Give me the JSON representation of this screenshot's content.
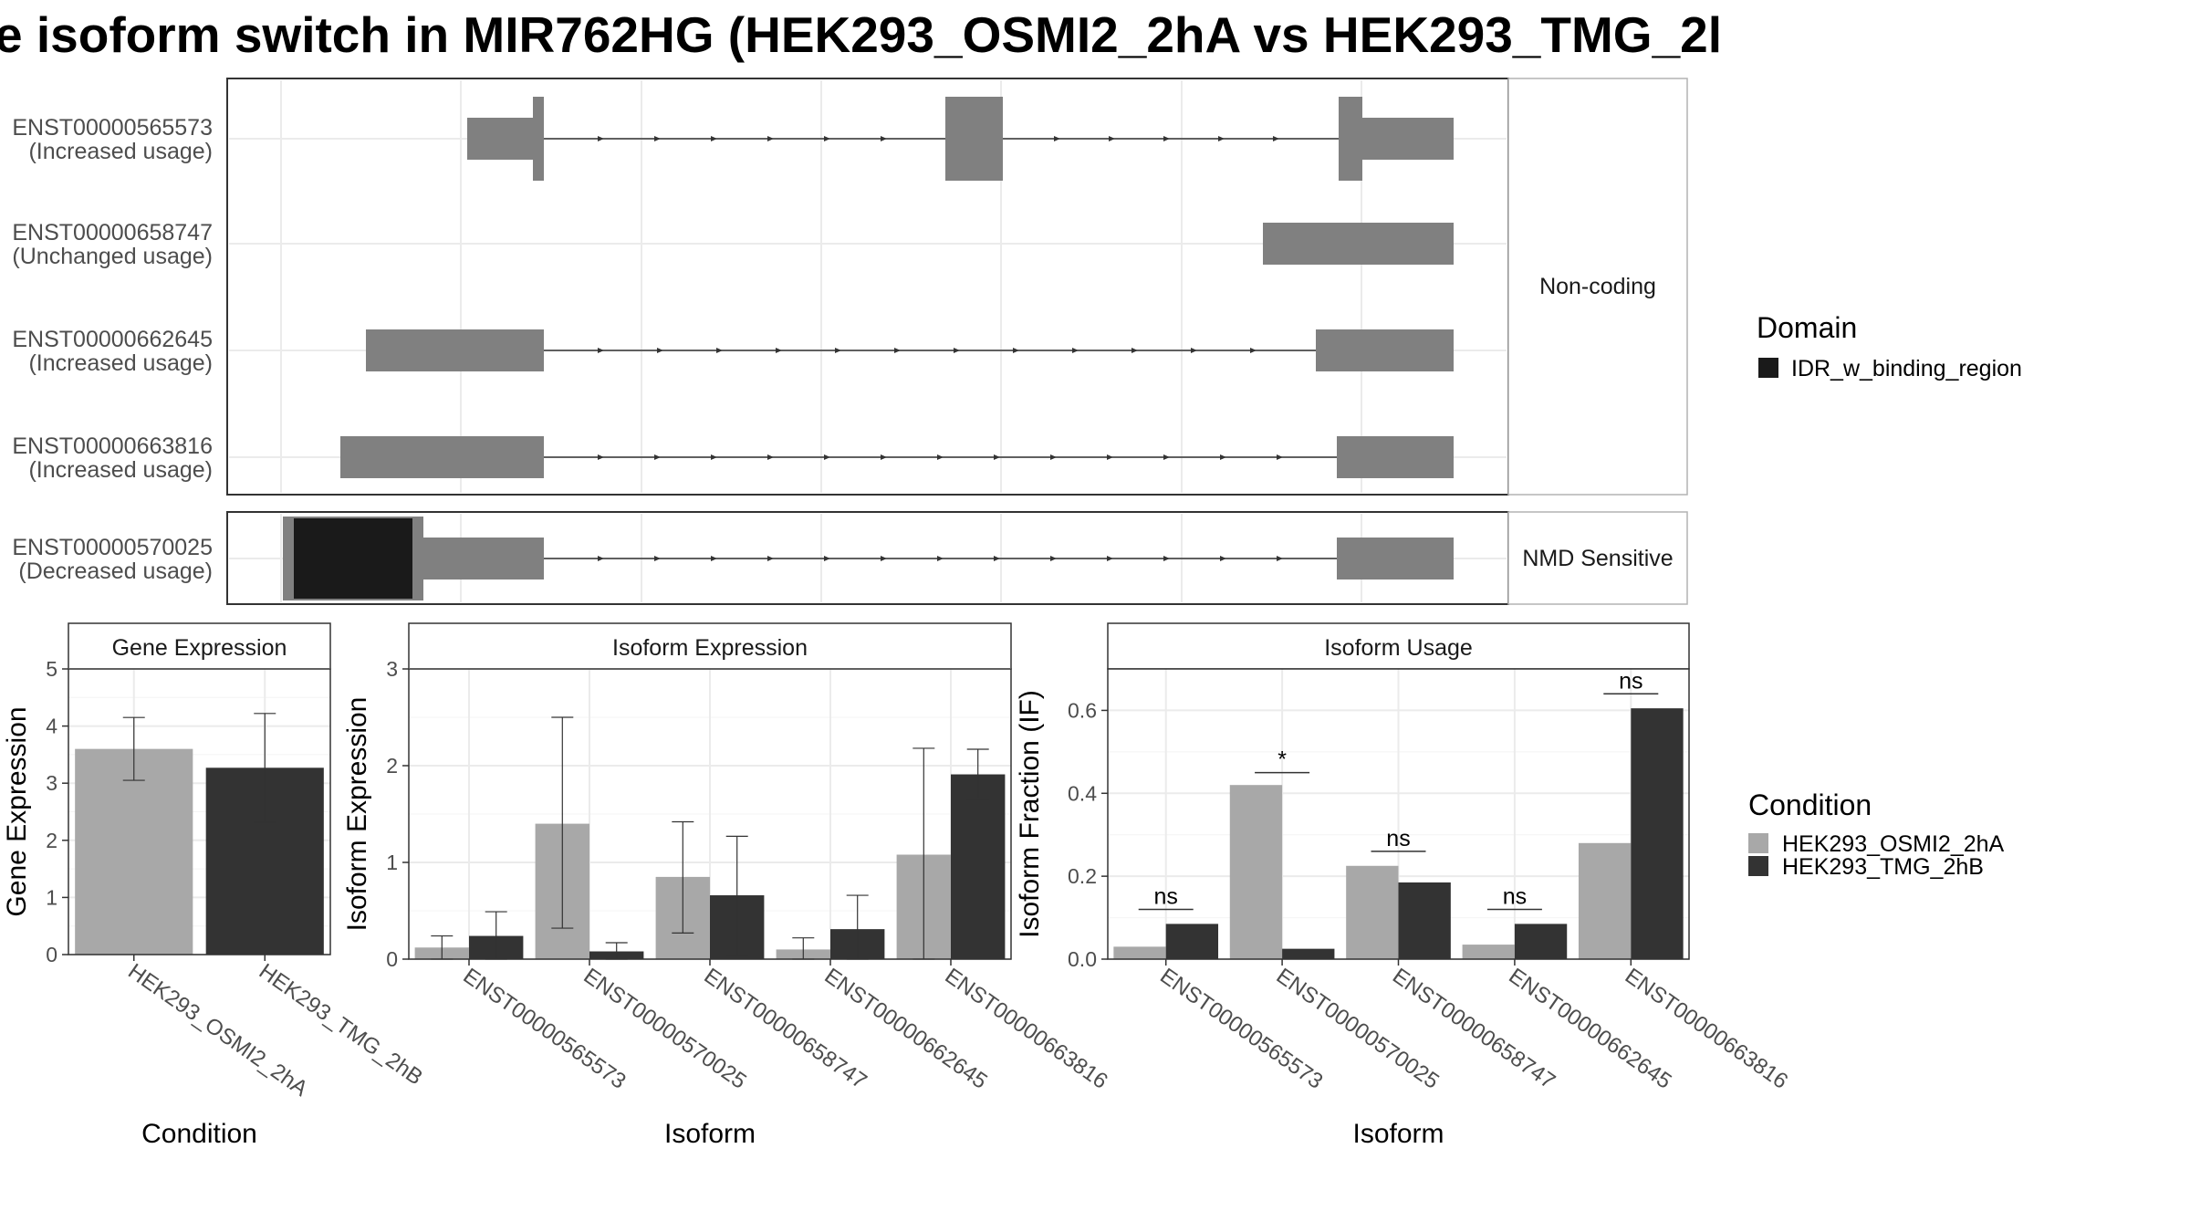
{
  "title": "e isoform switch in MIR762HG (HEK293_OSMI2_2hA vs HEK293_TMG_2l",
  "colors": {
    "cond_a": "#a8a8a8",
    "cond_b": "#333333",
    "exon": "#808080",
    "domain": "#1a1a1a",
    "grid": "#ebebeb",
    "strip_bg": "#ffffff"
  },
  "chart_data": [
    {
      "type": "gene-structure",
      "panels": [
        {
          "label": "Non-coding",
          "transcripts": [
            0,
            1,
            2,
            3
          ]
        },
        {
          "label": "NMD Sensitive",
          "transcripts": [
            4
          ]
        }
      ],
      "transcripts": [
        {
          "id": "ENST00000565573",
          "status": "(Increased usage)"
        },
        {
          "id": "ENST00000658747",
          "status": "(Unchanged usage)"
        },
        {
          "id": "ENST00000662645",
          "status": "(Increased usage)"
        },
        {
          "id": "ENST00000663816",
          "status": "(Increased usage)"
        },
        {
          "id": "ENST00000570025",
          "status": "(Decreased usage)"
        }
      ],
      "legend": {
        "title": "Domain",
        "items": [
          {
            "name": "IDR_w_binding_region",
            "color": "#1a1a1a"
          }
        ]
      }
    },
    {
      "type": "bar",
      "strip": "Gene Expression",
      "xlabel": "Condition",
      "ylabel": "Gene Expression",
      "ylim": [
        0,
        5
      ],
      "yticks": [
        0,
        1,
        2,
        3,
        4,
        5
      ],
      "categories": [
        "HEK293_OSMI2_2hA",
        "HEK293_TMG_2hB"
      ],
      "values": [
        3.6,
        3.27
      ],
      "err_low": [
        3.05,
        2.32
      ],
      "err_high": [
        4.15,
        4.22
      ]
    },
    {
      "type": "bar",
      "strip": "Isoform Expression",
      "xlabel": "Isoform",
      "ylabel": "Isoform Expression",
      "ylim": [
        0,
        3
      ],
      "yticks": [
        0,
        1,
        2,
        3
      ],
      "categories": [
        "ENST00000565573",
        "ENST00000570025",
        "ENST00000658747",
        "ENST00000662645",
        "ENST00000663816"
      ],
      "series": [
        {
          "name": "HEK293_OSMI2_2hA",
          "values": [
            0.12,
            1.4,
            0.85,
            0.1,
            1.08
          ],
          "err_low": [
            0.0,
            0.32,
            0.27,
            0.0,
            0.0
          ],
          "err_high": [
            0.24,
            2.5,
            1.42,
            0.22,
            2.18
          ]
        },
        {
          "name": "HEK293_TMG_2hB",
          "values": [
            0.24,
            0.08,
            0.66,
            0.31,
            1.91
          ],
          "err_low": [
            0.0,
            0.0,
            0.04,
            0.0,
            1.65
          ],
          "err_high": [
            0.49,
            0.17,
            1.27,
            0.66,
            2.17
          ]
        }
      ]
    },
    {
      "type": "bar",
      "strip": "Isoform Usage",
      "xlabel": "Isoform",
      "ylabel": "Isoform Fraction (IF)",
      "ylim": [
        0,
        0.7
      ],
      "yticks": [
        0.0,
        0.2,
        0.4,
        0.6
      ],
      "ytick_labels": [
        "0.0",
        "0.2",
        "0.4",
        "0.6"
      ],
      "categories": [
        "ENST00000565573",
        "ENST00000570025",
        "ENST00000658747",
        "ENST00000662645",
        "ENST00000663816"
      ],
      "series": [
        {
          "name": "HEK293_OSMI2_2hA",
          "values": [
            0.03,
            0.42,
            0.225,
            0.035,
            0.28
          ]
        },
        {
          "name": "HEK293_TMG_2hB",
          "values": [
            0.085,
            0.025,
            0.185,
            0.085,
            0.605
          ]
        }
      ],
      "significance": [
        {
          "label": "ns",
          "y": 0.12
        },
        {
          "label": "*",
          "y": 0.45
        },
        {
          "label": "ns",
          "y": 0.26
        },
        {
          "label": "ns",
          "y": 0.12
        },
        {
          "label": "ns",
          "y": 0.64
        }
      ],
      "legend": {
        "title": "Condition",
        "items": [
          {
            "name": "HEK293_OSMI2_2hA",
            "color": "#a8a8a8"
          },
          {
            "name": "HEK293_TMG_2hB",
            "color": "#333333"
          }
        ]
      }
    }
  ]
}
